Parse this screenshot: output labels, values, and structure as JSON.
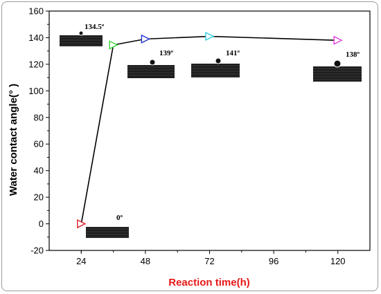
{
  "chart_data": {
    "type": "line",
    "xlabel": "Reaction time(h)",
    "ylabel": "Water contact angle(° )",
    "xlim": [
      12,
      132
    ],
    "ylim": [
      -20,
      160
    ],
    "xticks": [
      24,
      48,
      72,
      96,
      120
    ],
    "yticks": [
      -20,
      0,
      20,
      40,
      60,
      80,
      100,
      120,
      140,
      160
    ],
    "grid": false,
    "series": [
      {
        "x": [
          24,
          36,
          48,
          72,
          120
        ],
        "y": [
          0,
          134.5,
          139,
          141,
          138
        ],
        "marker_colors": [
          "#e0202a",
          "#38d838",
          "#2030d0",
          "#30d0e0",
          "#e040e0"
        ],
        "line_color": "#000000"
      }
    ],
    "annotations": [
      "134.5º",
      "0º",
      "139º",
      "141º",
      "138º"
    ],
    "xlabel_color": "#e81818"
  }
}
